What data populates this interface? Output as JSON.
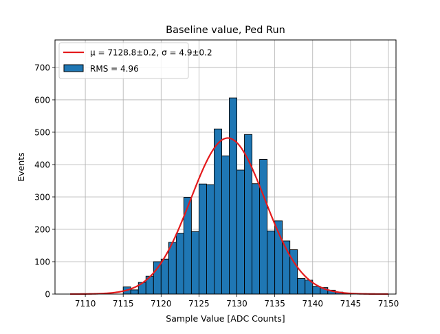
{
  "chart_data": {
    "type": "bar",
    "title": "Baseline value, Ped Run",
    "xlabel": "Sample Value [ADC Counts]",
    "ylabel": "Events",
    "xlim": [
      7106,
      7151
    ],
    "ylim": [
      0,
      785
    ],
    "xticks": [
      7110,
      7115,
      7120,
      7125,
      7130,
      7135,
      7140,
      7145,
      7150
    ],
    "yticks": [
      0,
      100,
      200,
      300,
      400,
      500,
      600,
      700
    ],
    "grid": true,
    "legend_position": "top-left",
    "histogram": {
      "name": "RMS = 4.96",
      "color": "#1f77b4",
      "edgecolor": "#000000",
      "bin_width": 1,
      "bins": [
        [
          7115,
          22
        ],
        [
          7116,
          13
        ],
        [
          7117,
          36
        ],
        [
          7118,
          55
        ],
        [
          7119,
          100
        ],
        [
          7120,
          108
        ],
        [
          7121,
          160
        ],
        [
          7122,
          188
        ],
        [
          7123,
          299
        ],
        [
          7124,
          193
        ],
        [
          7125,
          340
        ],
        [
          7126,
          338
        ],
        [
          7127,
          510
        ],
        [
          7128,
          427
        ],
        [
          7129,
          606
        ],
        [
          7130,
          383
        ],
        [
          7131,
          493
        ],
        [
          7132,
          341
        ],
        [
          7133,
          416
        ],
        [
          7134,
          195
        ],
        [
          7135,
          226
        ],
        [
          7136,
          164
        ],
        [
          7137,
          137
        ],
        [
          7138,
          48
        ],
        [
          7139,
          43
        ],
        [
          7140,
          24
        ],
        [
          7141,
          20
        ],
        [
          7142,
          12
        ],
        [
          7143,
          6
        ],
        [
          7144,
          3
        ],
        [
          7145,
          2
        ],
        [
          7146,
          1
        ],
        [
          7147,
          1
        ]
      ]
    },
    "fit": {
      "label_prefix": "μ = 7128.8±0.2,  σ = 4.9±0.2",
      "color": "#e41a1c",
      "mu": 7128.8,
      "sigma": 4.9,
      "amplitude": 482,
      "x_range": [
        7108,
        7150
      ]
    }
  }
}
